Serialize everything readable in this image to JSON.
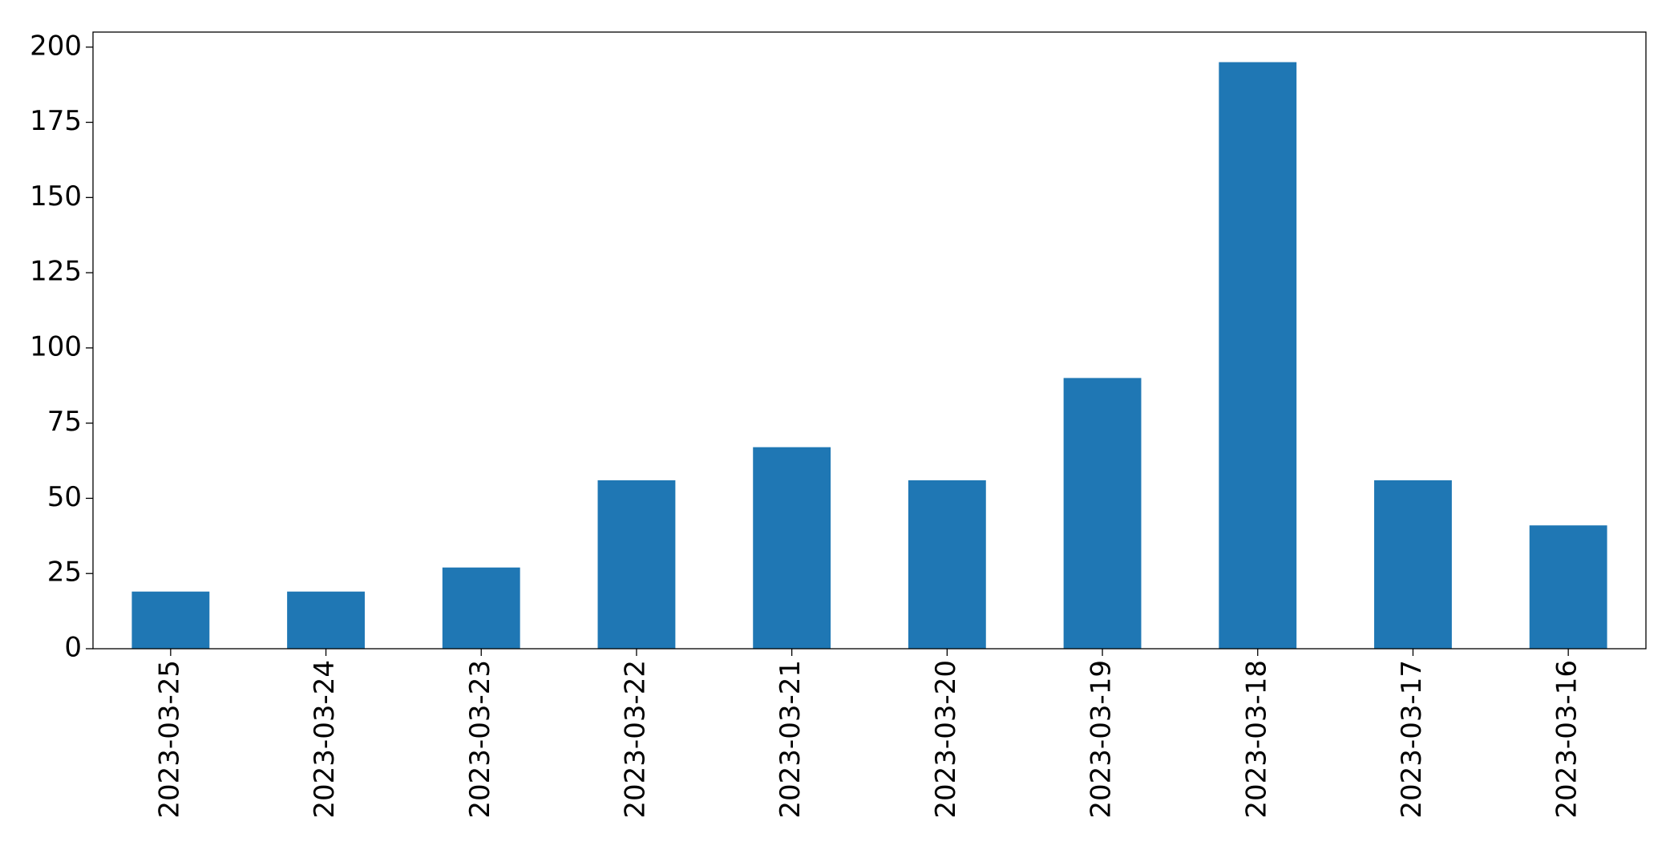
{
  "chart_data": {
    "type": "bar",
    "categories": [
      "2023-03-25",
      "2023-03-24",
      "2023-03-23",
      "2023-03-22",
      "2023-03-21",
      "2023-03-20",
      "2023-03-19",
      "2023-03-18",
      "2023-03-17",
      "2023-03-16"
    ],
    "values": [
      19,
      19,
      27,
      56,
      67,
      56,
      90,
      195,
      56,
      41
    ],
    "color": "#1f77b4",
    "ylim": [
      0,
      205
    ],
    "yticks": [
      0,
      25,
      50,
      75,
      100,
      125,
      150,
      175,
      200
    ],
    "grid": false
  }
}
